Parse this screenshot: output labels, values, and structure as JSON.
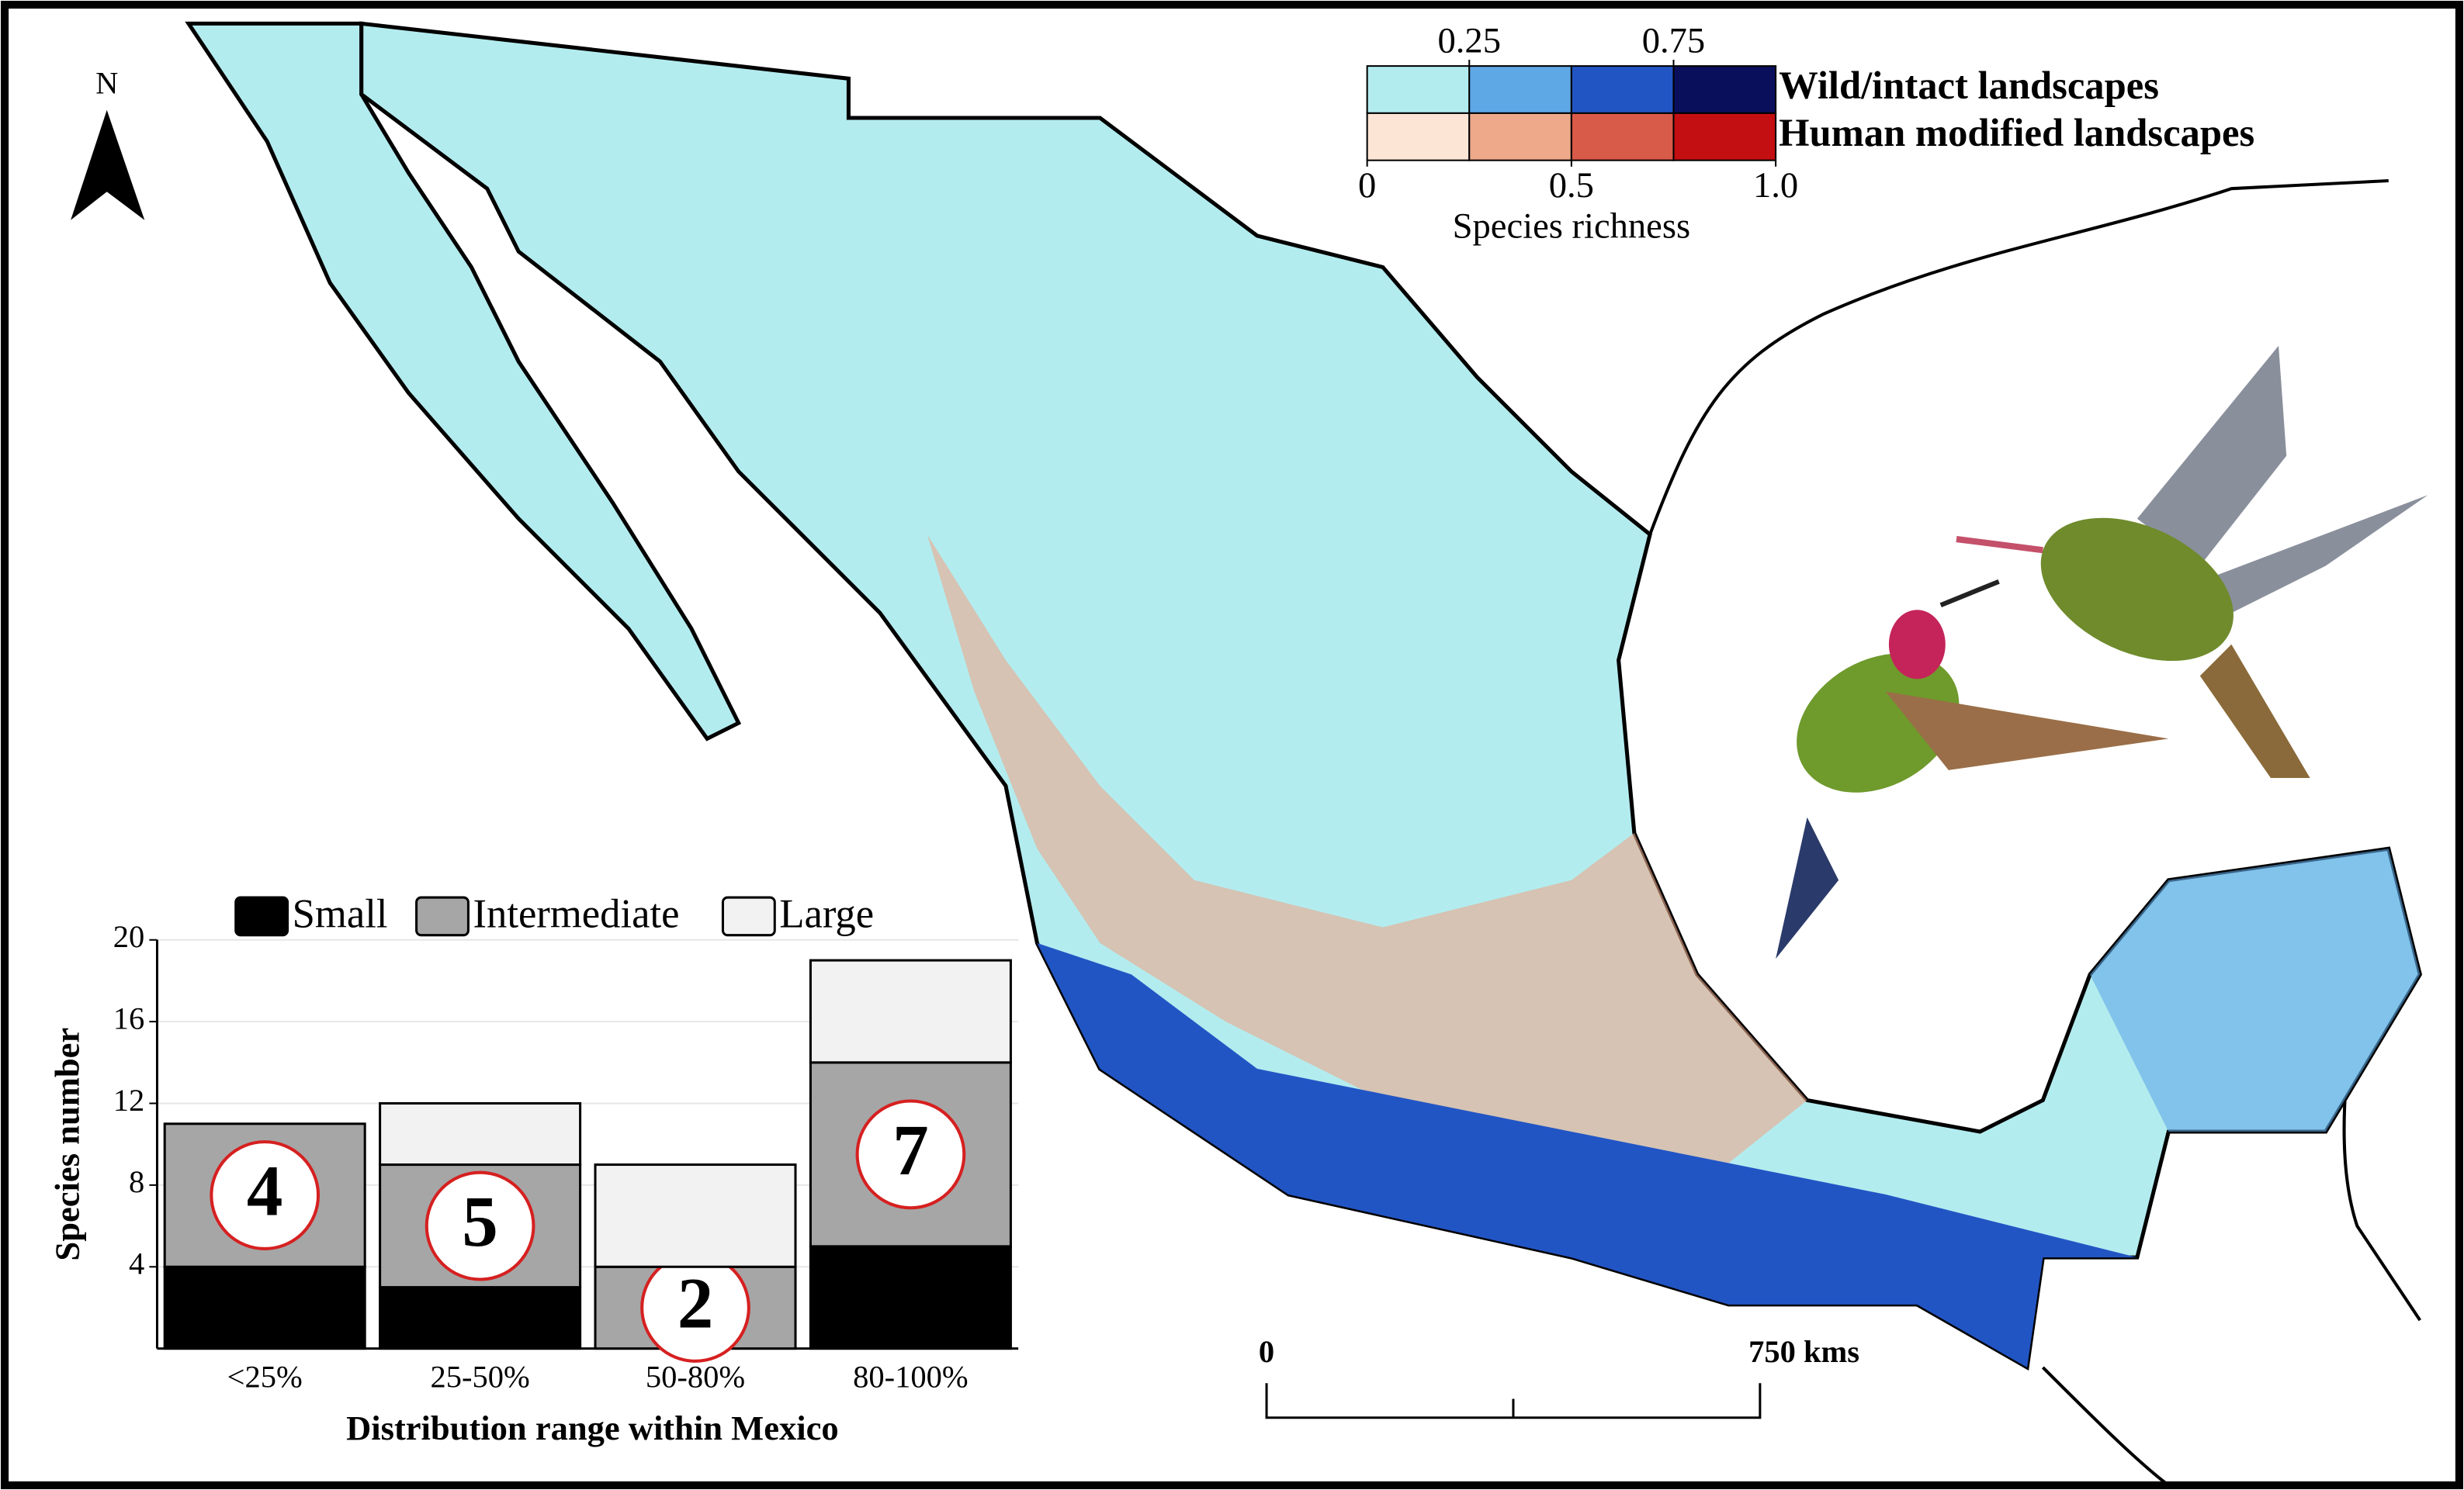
{
  "map": {
    "north": "N",
    "legend": {
      "title": "Species richness",
      "top_ticks": [
        0.25,
        0.75
      ],
      "bottom_ticks": [
        0,
        0.5,
        {
          "value": 1,
          "label": "1.0"
        }
      ],
      "rows": [
        {
          "name": "Wild/intact landscapes",
          "colors": [
            "#b3ecef",
            "#5fa8e6",
            "#2255c4",
            "#0a0f5c"
          ]
        },
        {
          "name": "Human modified landscapes",
          "colors": [
            "#fde5d6",
            "#eda98a",
            "#d85a48",
            "#c40f12"
          ]
        }
      ]
    },
    "scale_bar": {
      "labels": [
        "0",
        "750 kms"
      ]
    }
  },
  "chart_data": {
    "type": "stacked-bar",
    "x_label": "Distribution range within Mexico",
    "y_label": "Species number",
    "categories": [
      "<25%",
      "25-50%",
      "50-80%",
      "80-100%"
    ],
    "series": [
      {
        "name": "Small",
        "color": "#000000",
        "values": [
          4,
          3,
          0,
          5
        ]
      },
      {
        "name": "Intermediate",
        "color": "#a6a6a6",
        "values": [
          7,
          6,
          4,
          9
        ]
      },
      {
        "name": "Large",
        "color": "#f2f2f2",
        "values": [
          0,
          3,
          5,
          5
        ]
      }
    ],
    "annotations": [
      "4",
      "5",
      "2",
      "7"
    ],
    "ylim": [
      0,
      20
    ],
    "yticks": [
      4,
      8,
      12,
      16,
      20
    ],
    "grid": true
  }
}
